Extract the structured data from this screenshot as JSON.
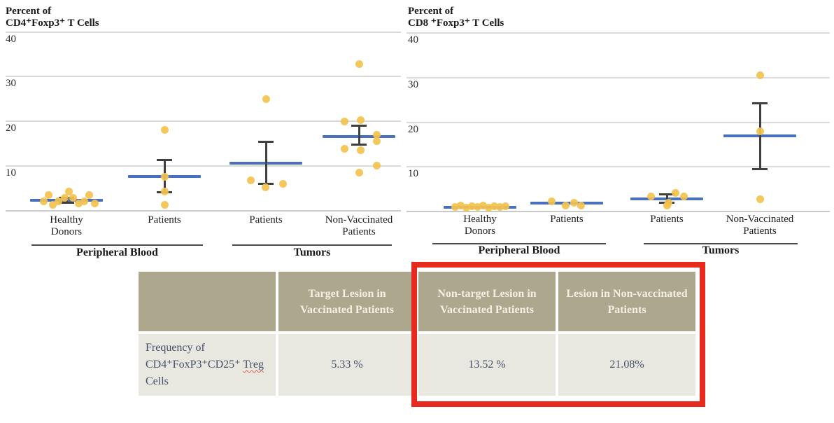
{
  "colors": {
    "dot": "#F2C24E",
    "mean_line": "#4A71BD",
    "error_bar": "#3F3F3F",
    "grid": "#DADADA",
    "baseline": "#C9C9C9",
    "title_text": "#1A1A1A",
    "table_header_bg": "#ACA78D",
    "table_header_text": "#F2EFE3",
    "table_cell_bg": "#E9E8E0",
    "table_cell_text": "#44516B",
    "highlight_red": "#E8291E"
  },
  "chart_data": [
    {
      "id": "cd4",
      "type": "scatter",
      "title_line1": "Percent of",
      "title_line2": "CD4⁺Foxp3⁺ T Cells",
      "y_ticks": [
        40,
        30,
        20,
        10
      ],
      "ylim": [
        0,
        40
      ],
      "grid": true,
      "legend": "none",
      "sections": [
        {
          "label": "Peripheral Blood"
        },
        {
          "label": "Tumors"
        }
      ],
      "groups": [
        {
          "label": "Healthy Donors",
          "label_lines": [
            "Healthy",
            "Donors"
          ],
          "section": 0,
          "mean": 2.3,
          "err_lo": 1.7,
          "err_hi": 2.9,
          "dots": [
            2.1,
            3.4,
            1.3,
            2.0,
            2.9,
            4.3,
            2.8,
            1.5,
            2.0,
            3.5,
            1.5
          ],
          "jitter": [
            -33,
            -26,
            -20,
            -12,
            -3,
            3,
            9,
            17,
            25,
            32,
            40
          ]
        },
        {
          "label": "Patients",
          "label_lines": [
            "Patients"
          ],
          "section": 0,
          "mean": 7.6,
          "err_lo": 4.0,
          "err_hi": 11.4,
          "dots": [
            18.0,
            7.6,
            4.2,
            1.2
          ],
          "jitter": [
            0,
            0,
            0,
            0
          ]
        },
        {
          "label": "Patients",
          "label_lines": [
            "Patients"
          ],
          "section": 1,
          "mean": 10.6,
          "err_lo": 5.9,
          "err_hi": 15.5,
          "dots": [
            25.0,
            6.7,
            5.1,
            5.9
          ],
          "jitter": [
            0,
            -22,
            -1,
            24
          ]
        },
        {
          "label": "Non-Vaccinated Patients",
          "label_lines": [
            "Non-Vaccinated",
            "Patients"
          ],
          "section": 1,
          "mean": 16.6,
          "err_lo": 14.7,
          "err_hi": 19.0,
          "dots": [
            32.8,
            20.0,
            20.2,
            17.0,
            15.6,
            13.8,
            13.5,
            10.0,
            8.4
          ],
          "jitter": [
            0,
            -21,
            2,
            25,
            25,
            -21,
            2,
            25,
            0
          ]
        }
      ]
    },
    {
      "id": "cd8",
      "type": "scatter",
      "title_line1": "Percent of",
      "title_line2": "CD8 ⁺Foxp3⁺ T Cells",
      "y_ticks": [
        40,
        30,
        20,
        10
      ],
      "ylim": [
        0,
        40
      ],
      "grid": true,
      "legend": "none",
      "sections": [
        {
          "label": "Peripheral Blood"
        },
        {
          "label": "Tumors"
        }
      ],
      "groups": [
        {
          "label": "Healthy Donors",
          "label_lines": [
            "Healthy",
            "Donors"
          ],
          "section": 0,
          "mean": 1.0,
          "err_lo": null,
          "err_hi": null,
          "dots": [
            1.0,
            1.3,
            0.9,
            1.2,
            1.0,
            1.3,
            0.9,
            1.1,
            1.0,
            1.2
          ],
          "jitter": [
            -36,
            -28,
            -20,
            -12,
            -4,
            4,
            12,
            20,
            28,
            36
          ]
        },
        {
          "label": "Patients",
          "label_lines": [
            "Patients"
          ],
          "section": 0,
          "mean": 1.9,
          "err_lo": null,
          "err_hi": null,
          "dots": [
            2.2,
            1.4,
            2.0,
            1.4
          ],
          "jitter": [
            -22,
            -2,
            10,
            20
          ]
        },
        {
          "label": "Patients",
          "label_lines": [
            "Patients"
          ],
          "section": 1,
          "mean": 2.9,
          "err_lo": 1.9,
          "err_hi": 3.9,
          "dots": [
            3.4,
            1.9,
            1.4,
            4.2,
            3.4
          ],
          "jitter": [
            -23,
            2,
            0,
            12,
            24
          ]
        },
        {
          "label": "Non-Vaccinated Patients",
          "label_lines": [
            "Non-Vaccinated",
            "Patients"
          ],
          "section": 1,
          "mean": 17.0,
          "err_lo": 9.4,
          "err_hi": 24.3,
          "dots": [
            30.5,
            18.0,
            2.8
          ],
          "jitter": [
            0,
            0,
            0
          ]
        }
      ]
    }
  ],
  "table": {
    "headers": [
      "",
      "Target Lesion in Vaccinated Patients",
      "Non-target Lesion in Vaccinated Patients",
      "Lesion in Non-vaccinated Patients"
    ],
    "row_label_parts": [
      "Frequency of CD4⁺FoxP3⁺CD25⁺ ",
      "Treg",
      " Cells"
    ],
    "values": [
      "5.33 %",
      "13.52 %",
      "21.08%"
    ]
  }
}
